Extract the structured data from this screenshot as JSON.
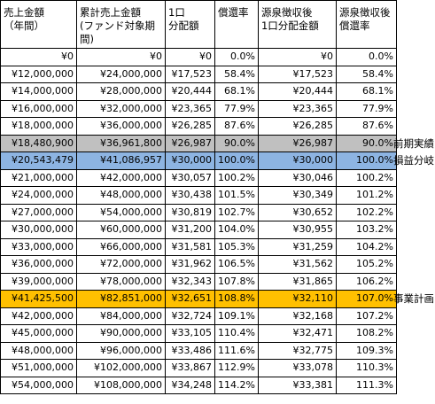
{
  "headers": [
    "売上金額\n（年間）",
    "累計売上金額\n(ファンド対象期間)",
    "1口\n分配額",
    "償還率",
    "源泉徴収後\n1口分配金額",
    "源泉徴収後\n償還率"
  ],
  "rows": [
    {
      "cells": [
        "¥0",
        "¥0",
        "¥0",
        "0.0%",
        "¥0",
        "0.0%"
      ],
      "highlight": ""
    },
    {
      "cells": [
        "¥12,000,000",
        "¥24,000,000",
        "¥17,523",
        "58.4%",
        "¥17,523",
        "58.4%"
      ],
      "highlight": ""
    },
    {
      "cells": [
        "¥14,000,000",
        "¥28,000,000",
        "¥20,444",
        "68.1%",
        "¥20,444",
        "68.1%"
      ],
      "highlight": ""
    },
    {
      "cells": [
        "¥16,000,000",
        "¥32,000,000",
        "¥23,365",
        "77.9%",
        "¥23,365",
        "77.9%"
      ],
      "highlight": ""
    },
    {
      "cells": [
        "¥18,000,000",
        "¥36,000,000",
        "¥26,285",
        "87.6%",
        "¥26,285",
        "87.6%"
      ],
      "highlight": ""
    },
    {
      "cells": [
        "¥18,480,900",
        "¥36,961,800",
        "¥26,987",
        "90.0%",
        "¥26,987",
        "90.0%"
      ],
      "highlight": "gray",
      "side_label": "前期実績"
    },
    {
      "cells": [
        "¥20,543,479",
        "¥41,086,957",
        "¥30,000",
        "100.0%",
        "¥30,000",
        "100.0%"
      ],
      "highlight": "blue",
      "side_label": "損益分岐"
    },
    {
      "cells": [
        "¥21,000,000",
        "¥42,000,000",
        "¥30,057",
        "100.2%",
        "¥30,046",
        "100.2%"
      ],
      "highlight": ""
    },
    {
      "cells": [
        "¥24,000,000",
        "¥48,000,000",
        "¥30,438",
        "101.5%",
        "¥30,349",
        "101.2%"
      ],
      "highlight": ""
    },
    {
      "cells": [
        "¥27,000,000",
        "¥54,000,000",
        "¥30,819",
        "102.7%",
        "¥30,652",
        "102.2%"
      ],
      "highlight": ""
    },
    {
      "cells": [
        "¥30,000,000",
        "¥60,000,000",
        "¥31,200",
        "104.0%",
        "¥30,955",
        "103.2%"
      ],
      "highlight": ""
    },
    {
      "cells": [
        "¥33,000,000",
        "¥66,000,000",
        "¥31,581",
        "105.3%",
        "¥31,259",
        "104.2%"
      ],
      "highlight": ""
    },
    {
      "cells": [
        "¥36,000,000",
        "¥72,000,000",
        "¥31,962",
        "106.5%",
        "¥31,562",
        "105.2%"
      ],
      "highlight": ""
    },
    {
      "cells": [
        "¥39,000,000",
        "¥78,000,000",
        "¥32,343",
        "107.8%",
        "¥31,865",
        "106.2%"
      ],
      "highlight": ""
    },
    {
      "cells": [
        "¥41,425,500",
        "¥82,851,000",
        "¥32,651",
        "108.8%",
        "¥32,110",
        "107.0%"
      ],
      "highlight": "orange",
      "side_label": "事業計画"
    },
    {
      "cells": [
        "¥42,000,000",
        "¥84,000,000",
        "¥32,724",
        "109.1%",
        "¥32,168",
        "107.2%"
      ],
      "highlight": ""
    },
    {
      "cells": [
        "¥45,000,000",
        "¥90,000,000",
        "¥33,105",
        "110.4%",
        "¥32,471",
        "108.2%"
      ],
      "highlight": ""
    },
    {
      "cells": [
        "¥48,000,000",
        "¥96,000,000",
        "¥33,486",
        "111.6%",
        "¥32,775",
        "109.3%"
      ],
      "highlight": ""
    },
    {
      "cells": [
        "¥51,000,000",
        "¥102,000,000",
        "¥33,867",
        "112.9%",
        "¥33,078",
        "110.3%"
      ],
      "highlight": ""
    },
    {
      "cells": [
        "¥54,000,000",
        "¥108,000,000",
        "¥34,248",
        "114.2%",
        "¥33,381",
        "111.3%"
      ],
      "highlight": ""
    }
  ],
  "colors": {
    "gray": "#c0c0c0",
    "blue": "#8db4e2",
    "orange": "#ffc000"
  }
}
